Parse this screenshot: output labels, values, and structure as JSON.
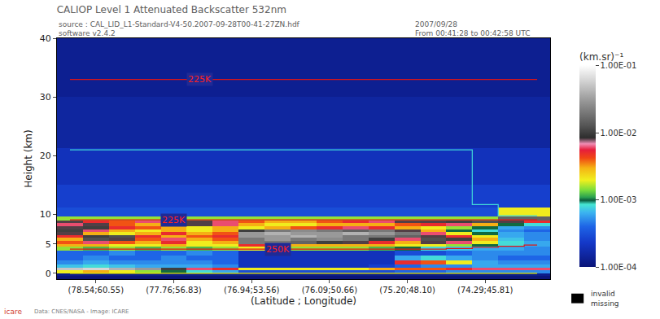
{
  "chart_data": {
    "type": "heatmap",
    "title": "CALIOP Level 1 Attenuated Backscatter 532nm",
    "subtitle": [
      "source : CAL_LID_L1-Standard-V4-50.2007-09-28T00-41-27ZN.hdf",
      "software v2.4.2"
    ],
    "annotations": [
      "2007/09/28",
      "From 00:41:28 to 00:42:58 UTC",
      "invalid",
      "missing",
      "Data: CNES/NASA - Image: ICARE",
      "icare"
    ],
    "x_label": "(Latitude ; Longitude)",
    "y_label": "Height (km)",
    "categories": [
      null,
      "(78.54;60.55)",
      null,
      null,
      "(77.76;56.83)",
      null,
      null,
      "(76.94;53.56)",
      null,
      null,
      "(76.09;50.66)",
      null,
      null,
      "(75.20;48.10)",
      null,
      null,
      "(74.29;45.81)",
      null,
      null
    ],
    "y": [
      -0.75,
      -0.25,
      0.25,
      0.75,
      1.25,
      1.75,
      2.5,
      3.5,
      4.25,
      4.75,
      5.25,
      5.75,
      6.25,
      6.75,
      7.25,
      7.75,
      8.25,
      8.75,
      9.25,
      10,
      12.5,
      17.5,
      25,
      35
    ],
    "ylim": [
      -1,
      40
    ],
    "yticks": [
      0,
      5,
      10,
      20,
      30,
      40
    ],
    "grid": false,
    "cells": [
      [
        0.0001,
        0.0001,
        0.0001,
        0.0001,
        0.0001,
        0.0001,
        0.0001,
        0.0001,
        0.0001,
        0.0001,
        0.0001,
        0.0001,
        0.0001,
        0.0001,
        0.0001,
        0.0001,
        0.0001,
        0.0001,
        0.0001
      ],
      [
        0.00012,
        0.00012,
        0.00012,
        0.00012,
        0.00012,
        0.00012,
        0.00012,
        0.00012,
        0.00012,
        0.00012,
        0.00012,
        0.00012,
        0.00012,
        0.00012,
        0.00012,
        0.00012,
        0.00012,
        0.00012,
        0.00012
      ],
      [
        0.002,
        0.003,
        0.002,
        0.0015,
        0.001,
        0.0008,
        0.0006,
        0.0003,
        0.0003,
        0.0003,
        0.0003,
        0.0003,
        0.0003,
        0.0004,
        0.0004,
        0.0005,
        0.0005,
        0.0005,
        0.0005
      ],
      [
        0.05,
        0.06,
        0.04,
        0.03,
        0.01,
        0.006,
        0.005,
        0.002,
        0.002,
        0.002,
        0.002,
        0.002,
        0.003,
        0.004,
        0.004,
        0.005,
        0.006,
        0.006,
        0.006
      ],
      [
        0.0007,
        0.0008,
        0.0007,
        0.0006,
        0.0006,
        0.0006,
        0.0005,
        0.0002,
        0.0002,
        0.0002,
        0.0002,
        0.0002,
        0.00025,
        0.0004,
        0.0005,
        0.0005,
        0.0006,
        0.0006,
        0.0006
      ],
      [
        0.0005,
        0.0006,
        0.0005,
        0.0005,
        0.0005,
        0.0005,
        0.0004,
        0.0002,
        0.0002,
        0.0002,
        0.0002,
        0.0002,
        0.0002,
        0.005,
        0.004,
        0.002,
        0.0006,
        0.0005,
        0.0005
      ],
      [
        0.0004,
        0.0005,
        0.0004,
        0.0004,
        0.0005,
        0.0004,
        0.0004,
        0.0002,
        0.0002,
        0.0002,
        0.0002,
        0.0002,
        0.0002,
        0.0006,
        0.0008,
        0.0006,
        0.0005,
        0.0004,
        0.0004
      ],
      [
        0.0004,
        0.0004,
        0.0005,
        0.0004,
        0.0004,
        0.0005,
        0.0004,
        0.0002,
        0.0002,
        0.0002,
        0.0002,
        0.0002,
        0.0002,
        0.0003,
        0.0003,
        0.0004,
        0.0005,
        0.0005,
        0.0005
      ],
      [
        0.0015,
        0.0012,
        0.0015,
        0.0012,
        0.0015,
        0.0012,
        0.0015,
        0.002,
        0.002,
        0.0015,
        0.0015,
        0.0015,
        0.0012,
        0.001,
        0.0008,
        0.0007,
        0.0006,
        0.0006,
        0.0005
      ],
      [
        0.003,
        0.003,
        0.002,
        0.002,
        0.003,
        0.002,
        0.002,
        0.005,
        0.004,
        0.003,
        0.003,
        0.003,
        0.003,
        0.002,
        0.002,
        0.0015,
        0.001,
        0.0008,
        0.0006
      ],
      [
        0.004,
        0.006,
        0.004,
        0.003,
        0.005,
        0.002,
        0.003,
        0.02,
        0.02,
        0.015,
        0.01,
        0.008,
        0.005,
        0.003,
        0.008,
        0.006,
        0.002,
        0.0008,
        0.0006
      ],
      [
        0.003,
        0.012,
        0.008,
        0.004,
        0.006,
        0.003,
        0.004,
        0.02,
        0.03,
        0.02,
        0.025,
        0.02,
        0.01,
        0.006,
        0.012,
        0.01,
        0.003,
        0.0007,
        0.0005
      ],
      [
        0.005,
        0.01,
        0.012,
        0.005,
        0.003,
        0.004,
        0.005,
        0.03,
        0.03,
        0.04,
        0.03,
        0.02,
        0.02,
        0.015,
        0.008,
        0.005,
        0.002,
        0.0006,
        0.0005
      ],
      [
        0.008,
        0.003,
        0.002,
        0.003,
        0.005,
        0.003,
        0.004,
        0.03,
        0.04,
        0.03,
        0.03,
        0.04,
        0.03,
        0.02,
        0.006,
        0.002,
        0.001,
        0.0006,
        0.0005
      ],
      [
        0.01,
        0.006,
        0.003,
        0.002,
        0.003,
        0.002,
        0.003,
        0.01,
        0.02,
        0.025,
        0.02,
        0.015,
        0.02,
        0.008,
        0.003,
        0.001,
        0.0008,
        0.0005,
        0.0004
      ],
      [
        0.008,
        0.01,
        0.005,
        0.004,
        0.003,
        0.002,
        0.003,
        0.002,
        0.003,
        0.004,
        0.005,
        0.006,
        0.005,
        0.003,
        0.002,
        0.0015,
        0.001,
        0.0006,
        0.0005
      ],
      [
        0.006,
        0.008,
        0.004,
        0.003,
        0.005,
        0.008,
        0.006,
        0.003,
        0.002,
        0.002,
        0.003,
        0.003,
        0.003,
        0.004,
        0.005,
        0.006,
        0.003,
        0.001,
        0.0008
      ],
      [
        0.008,
        0.005,
        0.004,
        0.006,
        0.01,
        0.008,
        0.006,
        0.004,
        0.003,
        0.003,
        0.004,
        0.005,
        0.006,
        0.008,
        0.008,
        0.01,
        0.012,
        0.008,
        0.005
      ],
      [
        0.0015,
        0.0015,
        0.0015,
        0.0015,
        0.0015,
        0.0015,
        0.0015,
        0.0015,
        0.0015,
        0.0015,
        0.0015,
        0.0015,
        0.0015,
        0.0015,
        0.0015,
        0.0015,
        0.0015,
        0.015,
        0.015
      ],
      [
        0.0003,
        0.0003,
        0.0003,
        0.0003,
        0.0003,
        0.0003,
        0.0003,
        0.0003,
        0.0003,
        0.0003,
        0.0003,
        0.0003,
        0.0003,
        0.0003,
        0.0003,
        0.0003,
        0.0003,
        0.002,
        0.002
      ],
      [
        0.00025,
        0.00025,
        0.00025,
        0.00025,
        0.00025,
        0.00025,
        0.00025,
        0.00025,
        0.00025,
        0.00025,
        0.00025,
        0.00025,
        0.00025,
        0.00025,
        0.00025,
        0.00025,
        0.00025,
        0.00025,
        0.00025
      ],
      [
        0.0002,
        0.0002,
        0.0002,
        0.0002,
        0.0002,
        0.0002,
        0.0002,
        0.0002,
        0.0002,
        0.0002,
        0.0002,
        0.0002,
        0.0002,
        0.0002,
        0.0002,
        0.0002,
        0.0002,
        0.0002,
        0.0002
      ],
      [
        0.00015,
        0.00015,
        0.00015,
        0.00015,
        0.00015,
        0.00015,
        0.00015,
        0.00015,
        0.00015,
        0.00015,
        0.00015,
        0.00015,
        0.00015,
        0.00015,
        0.00015,
        0.00015,
        0.00015,
        0.00015,
        0.00015
      ],
      [
        0.00013,
        0.00013,
        0.00013,
        0.00013,
        0.00013,
        0.00013,
        0.00013,
        0.00013,
        0.00013,
        0.00013,
        0.00013,
        0.00013,
        0.00013,
        0.00013,
        0.00013,
        0.00013,
        0.00013,
        0.00013,
        0.00013
      ]
    ],
    "colorbar": {
      "title": "(km.sr)⁻¹",
      "log": true,
      "range": [
        0.0001,
        0.1
      ],
      "ticks": [
        {
          "value": 0.1,
          "label": "1.00E-01"
        },
        {
          "value": 0.01,
          "label": "1.00E-02"
        },
        {
          "value": 0.001,
          "label": "1.00E-03"
        },
        {
          "value": 0.0001,
          "label": "1.00E-04"
        }
      ]
    },
    "lines": [
      {
        "label": "225K",
        "label_at": 5,
        "color": "#e01414",
        "values": [
          33,
          33,
          33,
          33,
          33,
          33,
          33,
          33,
          33,
          33,
          33,
          33,
          33,
          33,
          33,
          33,
          33,
          33,
          33
        ]
      },
      {
        "label": "225K",
        "label_at": 4,
        "color": "#e01414",
        "values": [
          9.1,
          9.1,
          9.1,
          9.1,
          9.1,
          9.1,
          9.1,
          9.1,
          9.1,
          9.1,
          9.1,
          9.1,
          9.1,
          9.1,
          9.1,
          9.1,
          9.1,
          9.1,
          9.1
        ]
      },
      {
        "label": "250K",
        "label_at": 8,
        "color": "#e01414",
        "values": [
          4.1,
          4.1,
          4.1,
          4.1,
          4.1,
          4.1,
          4.1,
          4.1,
          4.1,
          4.1,
          4.1,
          4.1,
          4.1,
          4.1,
          4.1,
          4.2,
          4.4,
          4.6,
          4.8
        ]
      },
      {
        "color": "#40d8d8",
        "values": [
          21,
          21,
          21,
          21,
          21,
          21,
          21,
          21,
          21,
          21,
          21,
          21,
          21,
          21,
          21,
          21,
          11.7,
          9.8,
          9.8
        ]
      },
      {
        "color": "#e8e800",
        "values": [
          0,
          0,
          0,
          0,
          0,
          0,
          0,
          0,
          0,
          0,
          0,
          0,
          0,
          0,
          0,
          0,
          0,
          0,
          0
        ]
      }
    ]
  }
}
